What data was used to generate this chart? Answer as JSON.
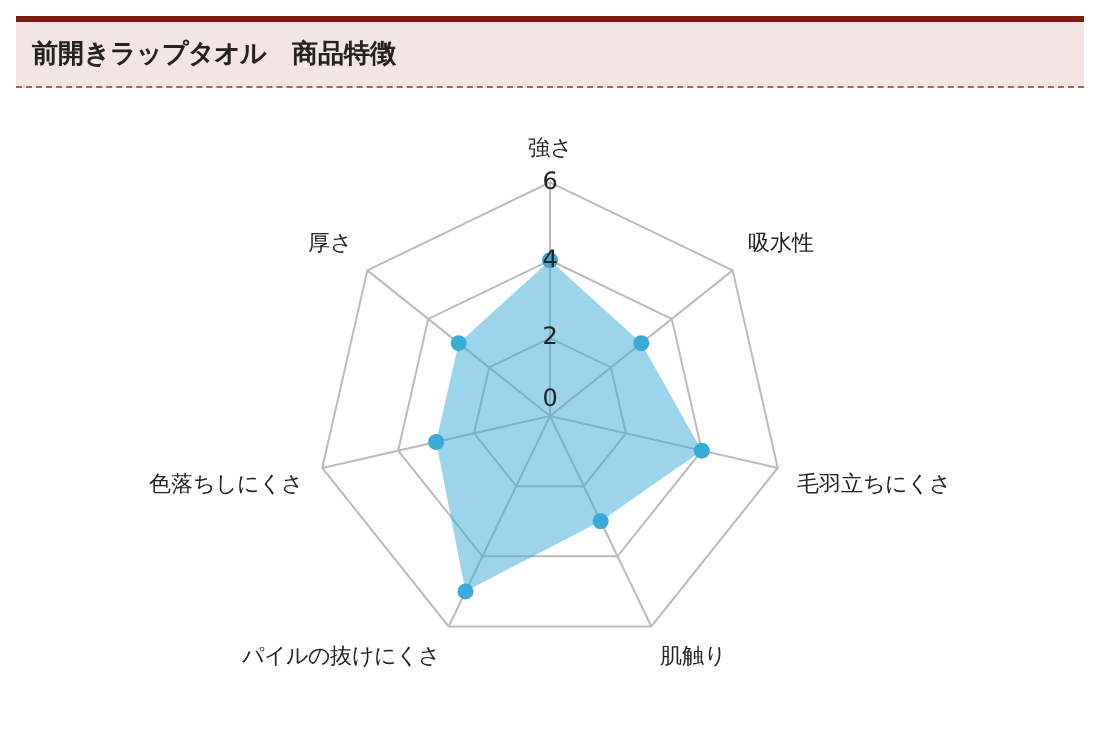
{
  "chart_data": {
    "type": "radar",
    "title": "前開きラップタオル　商品特徴",
    "categories": [
      "強さ",
      "吸水性",
      "毛羽立ちにくさ",
      "肌触り",
      "パイルの抜けにくさ",
      "色落ちしにくさ",
      "厚さ"
    ],
    "series": [
      {
        "color": "#3aaad9",
        "values": [
          4,
          3,
          4,
          3,
          5,
          3,
          3
        ]
      }
    ],
    "ylim": [
      0,
      6
    ],
    "yticks": [
      0,
      2,
      4,
      6
    ],
    "grid": true,
    "marker": "circle",
    "legend": false
  }
}
